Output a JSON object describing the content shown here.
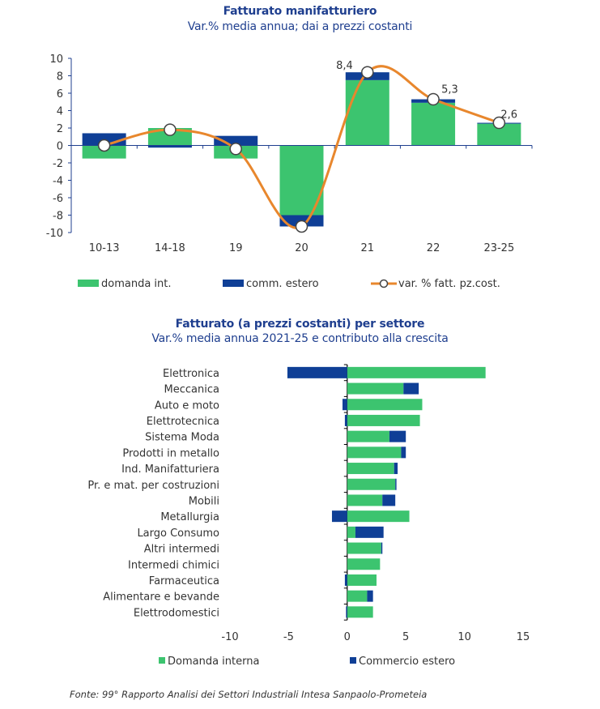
{
  "chart_data": [
    {
      "type": "bar",
      "stacked": true,
      "title": "Fatturato manifatturiero",
      "subtitle": "Var.% media annua; dai a prezzi costanti",
      "categories": [
        "10-13",
        "14-18",
        "19",
        "20",
        "21",
        "22",
        "23-25"
      ],
      "ylim": [
        -10,
        10
      ],
      "yticks": [
        10,
        8,
        6,
        4,
        2,
        0,
        -2,
        -4,
        -6,
        -8,
        -10
      ],
      "xlabel": "",
      "ylabel": "",
      "series": [
        {
          "name": "domanda int.",
          "kind": "bar",
          "color": "#3cc46f",
          "values": [
            -1.5,
            2.0,
            -1.5,
            -8.0,
            7.5,
            4.9,
            2.5
          ]
        },
        {
          "name": "comm. estero",
          "kind": "bar",
          "color": "#0f3f96",
          "values": [
            1.4,
            -0.25,
            1.1,
            -1.3,
            0.9,
            0.4,
            0.1
          ]
        },
        {
          "name": "var. % fatt. pz.cost.",
          "kind": "line",
          "color": "#e8872d",
          "values": [
            0.0,
            1.8,
            -0.4,
            -9.3,
            8.4,
            5.3,
            2.6
          ]
        }
      ],
      "data_labels": [
        {
          "category": "21",
          "text": "8,4"
        },
        {
          "category": "22",
          "text": "5,3"
        },
        {
          "category": "23-25",
          "text": "2,6"
        }
      ],
      "legend": "bottom",
      "grid": false
    },
    {
      "type": "bar",
      "orientation": "horizontal",
      "stacked": true,
      "title": "Fatturato (a prezzi costanti) per settore",
      "subtitle": "Var.% media annua 2021-25 e contributo alla crescita",
      "categories": [
        "Elettronica",
        "Meccanica",
        "Auto e moto",
        "Elettrotecnica",
        "Sistema Moda",
        "Prodotti in metallo",
        "Ind. Manifatturiera",
        "Pr. e mat. per costruzioni",
        "Mobili",
        "Metallurgia",
        "Largo Consumo",
        "Altri intermedi",
        "Intermedi chimici",
        "Farmaceutica",
        "Alimentare e bevande",
        "Elettrodomestici"
      ],
      "xlim": [
        -10,
        15
      ],
      "xticks": [
        -10,
        -5,
        0,
        5,
        10,
        15
      ],
      "series": [
        {
          "name": "Domanda interna",
          "color": "#3cc46f",
          "values": [
            11.8,
            4.8,
            6.4,
            6.2,
            3.6,
            4.6,
            4.0,
            4.1,
            3.0,
            5.3,
            0.7,
            2.9,
            2.8,
            2.5,
            1.7,
            2.2
          ]
        },
        {
          "name": "Commercio estero",
          "color": "#0f3f96",
          "values": [
            -5.1,
            1.3,
            -0.4,
            -0.2,
            1.4,
            0.4,
            0.3,
            0.1,
            1.1,
            -1.3,
            2.4,
            0.1,
            0.0,
            -0.2,
            0.5,
            -0.1
          ]
        }
      ],
      "legend": "bottom",
      "grid": false
    }
  ],
  "source": "Fonte: 99° Rapporto Analisi dei Settori Industriali Intesa Sanpaolo-Prometeia"
}
